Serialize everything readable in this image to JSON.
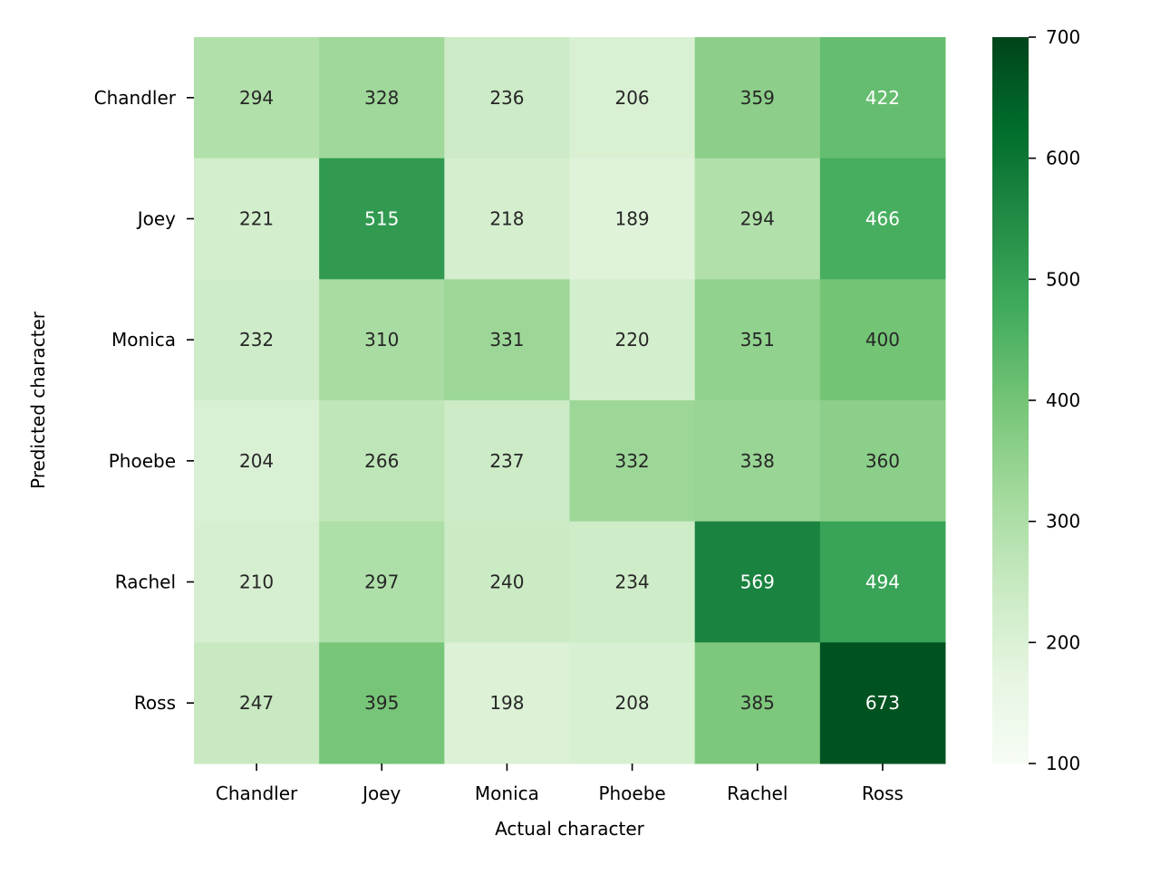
{
  "chart_data": {
    "type": "heatmap",
    "title": "",
    "xlabel": "Actual character",
    "ylabel": "Predicted character",
    "x_categories": [
      "Chandler",
      "Joey",
      "Monica",
      "Phoebe",
      "Rachel",
      "Ross"
    ],
    "y_categories": [
      "Chandler",
      "Joey",
      "Monica",
      "Phoebe",
      "Rachel",
      "Ross"
    ],
    "values": [
      [
        294,
        328,
        236,
        206,
        359,
        422
      ],
      [
        221,
        515,
        218,
        189,
        294,
        466
      ],
      [
        232,
        310,
        331,
        220,
        351,
        400
      ],
      [
        204,
        266,
        237,
        332,
        338,
        360
      ],
      [
        210,
        297,
        240,
        234,
        569,
        494
      ],
      [
        247,
        395,
        198,
        208,
        385,
        673
      ]
    ],
    "colorbar": {
      "range": [
        100,
        700
      ],
      "ticks": [
        100,
        200,
        300,
        400,
        500,
        600,
        700
      ],
      "colormap": "Greens",
      "low_color": "#f7fcf5",
      "high_color": "#00441b"
    },
    "grid": false
  }
}
